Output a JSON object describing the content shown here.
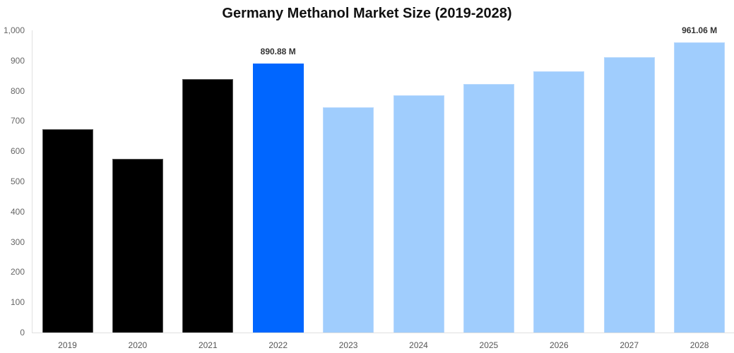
{
  "chart_data": {
    "type": "bar",
    "title": "Germany Methanol Market Size (2019-2028)",
    "xlabel": "",
    "ylabel": "",
    "ylim": [
      0,
      1000
    ],
    "yticks": [
      "0",
      "100",
      "200",
      "300",
      "400",
      "500",
      "600",
      "700",
      "800",
      "900",
      "1,000"
    ],
    "grid": false,
    "legend": null,
    "categories": [
      "2019",
      "2020",
      "2021",
      "2022",
      "2023",
      "2024",
      "2025",
      "2026",
      "2027",
      "2028"
    ],
    "values": [
      673,
      575,
      839,
      890.88,
      745,
      785,
      822,
      864,
      911,
      961.06
    ],
    "bar_types": [
      "historical",
      "historical",
      "historical",
      "current",
      "forecast",
      "forecast",
      "forecast",
      "forecast",
      "forecast",
      "forecast"
    ],
    "annotations": [
      {
        "category": "2022",
        "label": "890.88 M"
      },
      {
        "category": "2028",
        "label": "961.06 M"
      }
    ],
    "colors": {
      "historical": "#000000",
      "current": "#0066ff",
      "forecast": "#a0cdfd"
    }
  }
}
